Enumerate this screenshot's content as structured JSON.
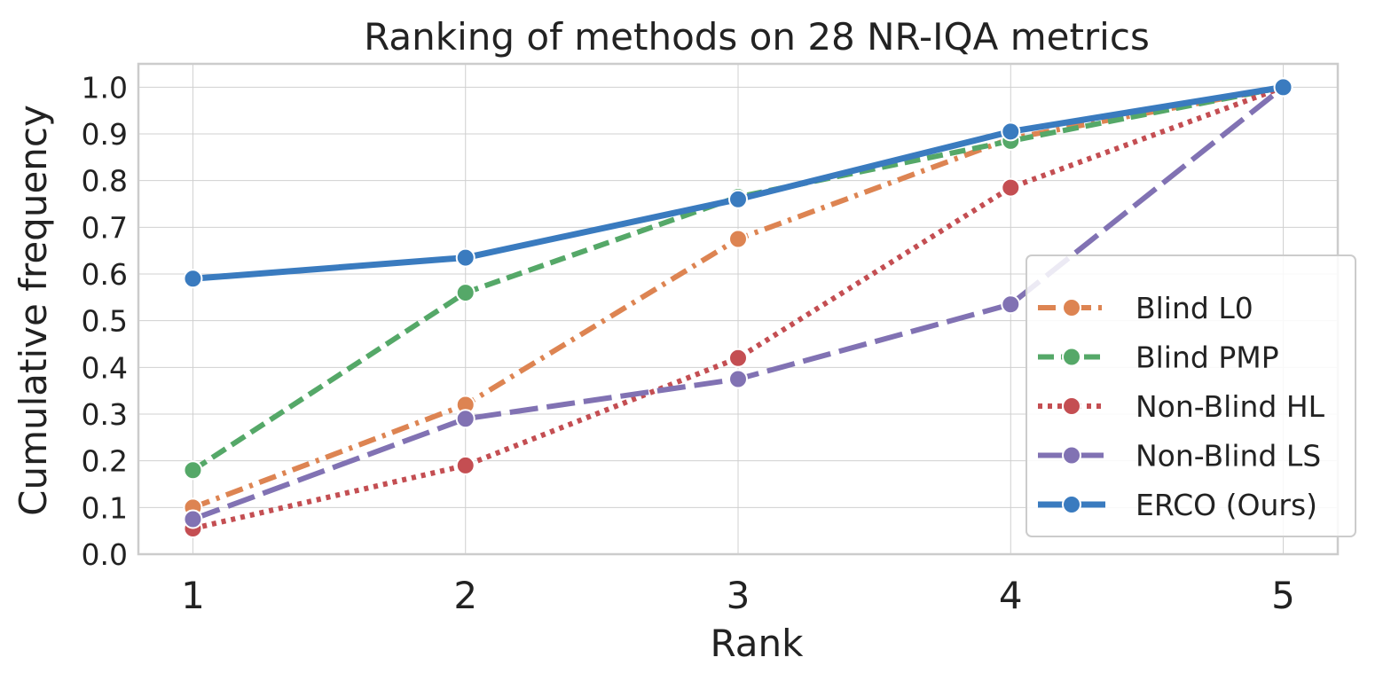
{
  "chart_data": {
    "type": "line",
    "title": "Ranking of methods on 28 NR-IQA metrics",
    "xlabel": "Rank",
    "ylabel": "Cumulative frequency",
    "x": [
      1,
      2,
      3,
      4,
      5
    ],
    "x_ticks": [
      "1",
      "2",
      "3",
      "4",
      "5"
    ],
    "xlim": [
      0.8,
      5.2
    ],
    "ylim": [
      0.0,
      1.05
    ],
    "y_ticks": [
      "0.0",
      "0.1",
      "0.2",
      "0.3",
      "0.4",
      "0.5",
      "0.6",
      "0.7",
      "0.8",
      "0.9",
      "1.0"
    ],
    "grid": true,
    "legend_position": "lower-right",
    "series": [
      {
        "name": "Blind L0",
        "color": "#dd8452",
        "dash": "dash-dot",
        "values": [
          0.1,
          0.32,
          0.675,
          0.89,
          1.0
        ]
      },
      {
        "name": "Blind PMP",
        "color": "#55a868",
        "dash": "dashed",
        "values": [
          0.18,
          0.56,
          0.765,
          0.885,
          1.0
        ]
      },
      {
        "name": "Non-Blind HL",
        "color": "#c44e52",
        "dash": "dotted",
        "values": [
          0.055,
          0.19,
          0.42,
          0.785,
          1.0
        ]
      },
      {
        "name": "Non-Blind LS",
        "color": "#8172b3",
        "dash": "long-dash",
        "values": [
          0.075,
          0.29,
          0.375,
          0.535,
          1.0
        ]
      },
      {
        "name": "ERCO (Ours)",
        "color": "#3a7bbf",
        "dash": "solid",
        "values": [
          0.59,
          0.635,
          0.76,
          0.905,
          1.0
        ]
      }
    ]
  }
}
